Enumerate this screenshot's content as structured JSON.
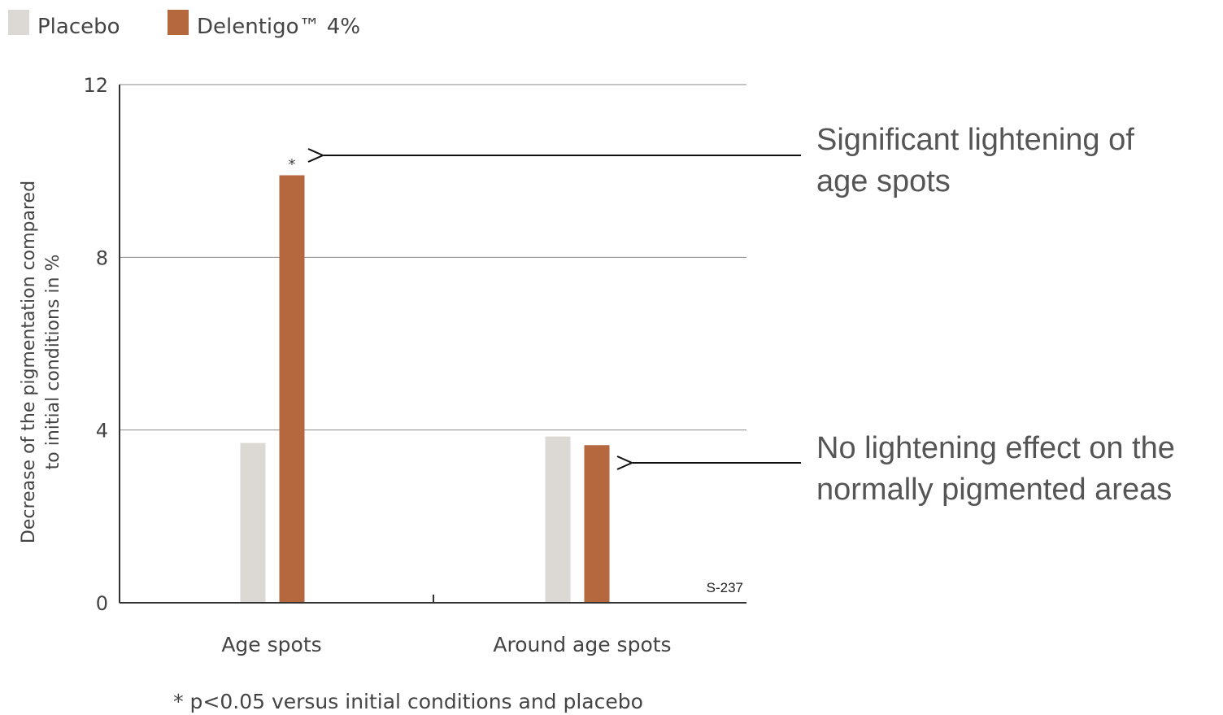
{
  "chart_data": {
    "type": "bar",
    "categories": [
      "Age spots",
      "Around age spots"
    ],
    "series": [
      {
        "name": "Placebo",
        "values": [
          3.7,
          3.85
        ],
        "color": "#dcd9d5"
      },
      {
        "name": "Delentigo™ 4%",
        "values": [
          9.9,
          3.65
        ],
        "color": "#b5673e"
      }
    ],
    "ylabel_line1": "Decrease of the pigmentation compared",
    "ylabel_line2": "to initial conditions in %",
    "ylim": [
      0,
      12
    ],
    "yticks": [
      "0",
      "4",
      "8",
      "12"
    ],
    "ytick_values": [
      0,
      4,
      8,
      12
    ],
    "grid": true,
    "legend_position": "top-left",
    "significance_marker": "*",
    "code": "S-237",
    "footnote": "* p<0.05 versus initial conditions and placebo",
    "annotations": [
      {
        "line1": "Significant lightening of",
        "line2": "age spots",
        "target": "Age spots / Delentigo™ 4%"
      },
      {
        "line1": "No lightening effect on the",
        "line2": "normally pigmented areas",
        "target": "Around age spots / Delentigo™ 4%"
      }
    ]
  }
}
